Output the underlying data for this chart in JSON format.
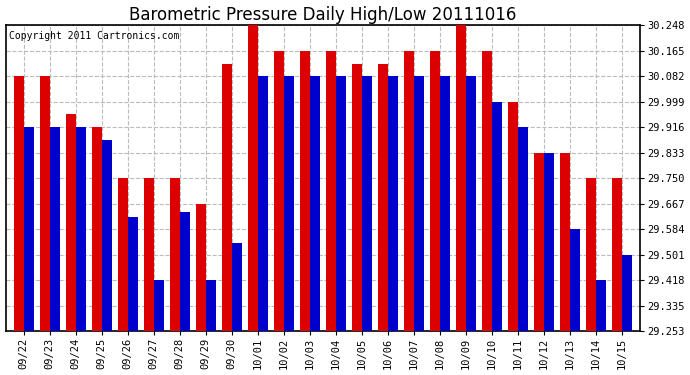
{
  "title": "Barometric Pressure Daily High/Low 20111016",
  "copyright": "Copyright 2011 Cartronics.com",
  "categories": [
    "09/22",
    "09/23",
    "09/24",
    "09/25",
    "09/26",
    "09/27",
    "09/28",
    "09/29",
    "09/30",
    "10/01",
    "10/02",
    "10/03",
    "10/04",
    "10/05",
    "10/06",
    "10/07",
    "10/08",
    "10/09",
    "10/10",
    "10/11",
    "10/12",
    "10/13",
    "10/14",
    "10/15"
  ],
  "highs": [
    30.082,
    30.082,
    29.96,
    29.916,
    29.75,
    29.75,
    29.75,
    29.667,
    30.123,
    30.248,
    30.165,
    30.165,
    30.165,
    30.123,
    30.123,
    30.165,
    30.165,
    30.248,
    30.165,
    29.999,
    29.833,
    29.833,
    29.75,
    29.75
  ],
  "lows": [
    29.916,
    29.916,
    29.916,
    29.875,
    29.625,
    29.418,
    29.64,
    29.418,
    29.54,
    30.082,
    30.082,
    30.082,
    30.082,
    30.082,
    30.082,
    30.082,
    30.082,
    30.082,
    29.999,
    29.916,
    29.833,
    29.584,
    29.418,
    29.501
  ],
  "high_color": "#dd0000",
  "low_color": "#0000cc",
  "ylim_min": 29.253,
  "ylim_max": 30.248,
  "yticks": [
    29.253,
    29.335,
    29.418,
    29.501,
    29.584,
    29.667,
    29.75,
    29.833,
    29.916,
    29.999,
    30.082,
    30.165,
    30.248
  ],
  "bg_color": "#ffffff",
  "plot_bg": "#ffffff",
  "grid_color": "#bbbbbb",
  "title_fontsize": 12,
  "copyright_fontsize": 7
}
